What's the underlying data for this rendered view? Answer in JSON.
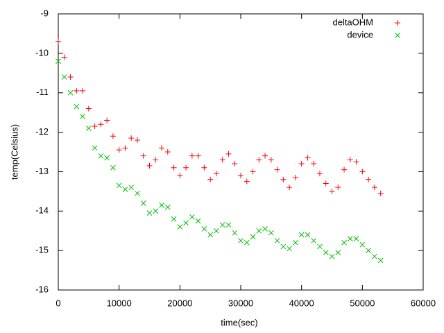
{
  "chart_data": {
    "type": "scatter",
    "xlabel": "time(sec)",
    "ylabel": "temp(Celsius)",
    "x": [
      0,
      1000,
      2000,
      3000,
      4000,
      5000,
      6000,
      7000,
      8000,
      9000,
      10000,
      11000,
      12000,
      13000,
      14000,
      15000,
      16000,
      17000,
      18000,
      19000,
      20000,
      21000,
      22000,
      23000,
      24000,
      25000,
      26000,
      27000,
      28000,
      29000,
      30000,
      31000,
      32000,
      33000,
      34000,
      35000,
      36000,
      37000,
      38000,
      39000,
      40000,
      41000,
      42000,
      43000,
      44000,
      45000,
      46000,
      47000,
      48000,
      49000,
      50000,
      51000,
      52000,
      53000
    ],
    "series": [
      {
        "name": "deltaOHM",
        "color": "#ff0000",
        "marker": "plus",
        "values": [
          -9.7,
          -10.1,
          -10.6,
          -10.95,
          -10.95,
          -11.4,
          -11.85,
          -11.8,
          -11.7,
          -12.1,
          -12.45,
          -12.4,
          -12.15,
          -12.2,
          -12.6,
          -12.85,
          -12.7,
          -12.4,
          -12.5,
          -12.9,
          -13.1,
          -12.9,
          -12.6,
          -12.6,
          -12.9,
          -13.2,
          -13.05,
          -12.7,
          -12.55,
          -12.8,
          -13.1,
          -13.25,
          -13.0,
          -12.7,
          -12.6,
          -12.7,
          -12.95,
          -13.2,
          -13.4,
          -13.15,
          -12.8,
          -12.65,
          -12.8,
          -13.05,
          -13.3,
          -13.5,
          -13.4,
          -12.95,
          -12.7,
          -12.75,
          -13.0,
          -13.2,
          -13.4,
          -13.55
        ]
      },
      {
        "name": "device",
        "color": "#00c000",
        "marker": "cross",
        "values": [
          -10.2,
          -10.6,
          -11.0,
          -11.35,
          -11.6,
          -11.9,
          -12.4,
          -12.6,
          -12.65,
          -12.9,
          -13.35,
          -13.45,
          -13.4,
          -13.55,
          -13.8,
          -14.05,
          -14.0,
          -13.85,
          -13.9,
          -14.2,
          -14.4,
          -14.3,
          -14.15,
          -14.25,
          -14.45,
          -14.6,
          -14.5,
          -14.35,
          -14.35,
          -14.55,
          -14.75,
          -14.8,
          -14.65,
          -14.5,
          -14.45,
          -14.55,
          -14.75,
          -14.9,
          -14.95,
          -14.8,
          -14.6,
          -14.6,
          -14.75,
          -14.9,
          -15.05,
          -15.15,
          -15.05,
          -14.8,
          -14.7,
          -14.7,
          -14.85,
          -15.0,
          -15.15,
          -15.25
        ]
      }
    ],
    "xlim": [
      0,
      60000
    ],
    "xticks": [
      0,
      10000,
      20000,
      30000,
      40000,
      50000,
      60000
    ],
    "ylim": [
      -16,
      -9
    ],
    "yticks": [
      -16,
      -15,
      -14,
      -13,
      -12,
      -11,
      -10,
      -9
    ],
    "grid": false,
    "legend": "top-right"
  }
}
